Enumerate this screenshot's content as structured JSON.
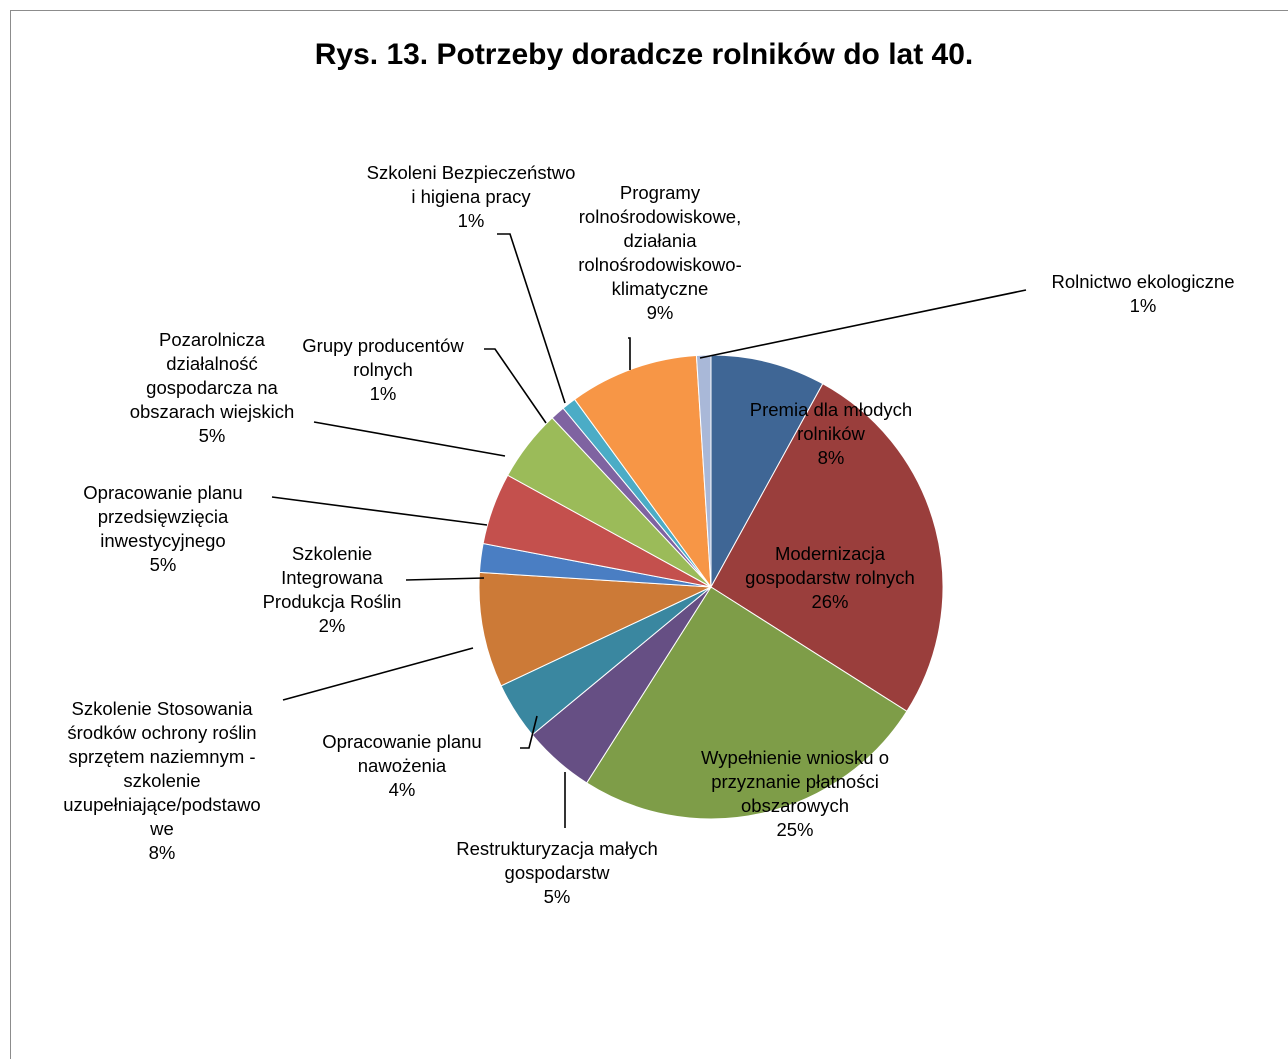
{
  "chart_data": {
    "type": "pie",
    "title": "Rys. 13. Potrzeby doradcze rolników do lat 40.",
    "slices": [
      {
        "name": "Premia dla  młodych rolników",
        "lines": [
          "Premia dla  młodych",
          "rolników",
          "8%"
        ],
        "value": 8,
        "color": "#3F6695"
      },
      {
        "name": "Modernizacja gospodarstw rolnych",
        "lines": [
          "Modernizacja",
          "gospodarstw rolnych",
          "26%"
        ],
        "value": 26,
        "color": "#9A3E3C"
      },
      {
        "name": "Wypełnienie wniosku o przyznanie płatności obszarowych",
        "lines": [
          "Wypełnienie wniosku o",
          "przyznanie płatności",
          "obszarowych",
          "25%"
        ],
        "value": 25,
        "color": "#7E9D48"
      },
      {
        "name": "Restrukturyzacja małych gospodarstw",
        "lines": [
          "Restrukturyzacja małych",
          "gospodarstw",
          "5%"
        ],
        "value": 5,
        "color": "#664F84"
      },
      {
        "name": "Opracowanie planu nawożenia",
        "lines": [
          "Opracowanie planu",
          "nawożenia",
          "4%"
        ],
        "value": 4,
        "color": "#3A87A0"
      },
      {
        "name": "Szkolenie Stosowania środków ochrony roślin sprzętem naziemnym - szkolenie uzupełniające/podstawowe",
        "lines": [
          "Szkolenie Stosowania",
          "środków ochrony roślin",
          "sprzętem naziemnym -",
          "szkolenie",
          "uzupełniające/podstawo",
          "we",
          "8%"
        ],
        "value": 8,
        "color": "#CC7A37"
      },
      {
        "name": "Szkolenie Integrowana Produkcja Roślin",
        "lines": [
          "Szkolenie",
          "Integrowana",
          "Produkcja Roślin",
          "2%"
        ],
        "value": 2,
        "color": "#4A7EC3"
      },
      {
        "name": "Opracowanie planu przedsięwzięcia inwestycyjnego",
        "lines": [
          "Opracowanie planu",
          "przedsięwzięcia",
          "inwestycyjnego",
          "5%"
        ],
        "value": 5,
        "color": "#C4504D"
      },
      {
        "name": "Pozarolnicza działalność gospodarcza na obszarach wiejskich",
        "lines": [
          "Pozarolnicza",
          "działalność",
          "gospodarcza na",
          "obszarach wiejskich",
          "5%"
        ],
        "value": 5,
        "color": "#9BBB59"
      },
      {
        "name": "Grupy producentów rolnych",
        "lines": [
          "Grupy producentów",
          "rolnych",
          "1%"
        ],
        "value": 1,
        "color": "#7F63A1"
      },
      {
        "name": "Szkoleni Bezpieczeństwo i higiena pracy",
        "lines": [
          "Szkoleni Bezpieczeństwo",
          "i higiena pracy",
          "1%"
        ],
        "value": 1,
        "color": "#4BACC6"
      },
      {
        "name": "Programy rolnośrodowiskowe, działania rolnośrodowiskowo-klimatyczne",
        "lines": [
          "Programy",
          "rolnośrodowiskowe,",
          "działania",
          "rolnośrodowiskowo-",
          "klimatyczne",
          "9%"
        ],
        "value": 9,
        "color": "#F79646"
      },
      {
        "name": "Rolnictwo ekologiczne",
        "lines": [
          "Rolnictwo ekologiczne",
          "1%"
        ],
        "value": 1,
        "color": "#A9B8D8"
      }
    ]
  }
}
